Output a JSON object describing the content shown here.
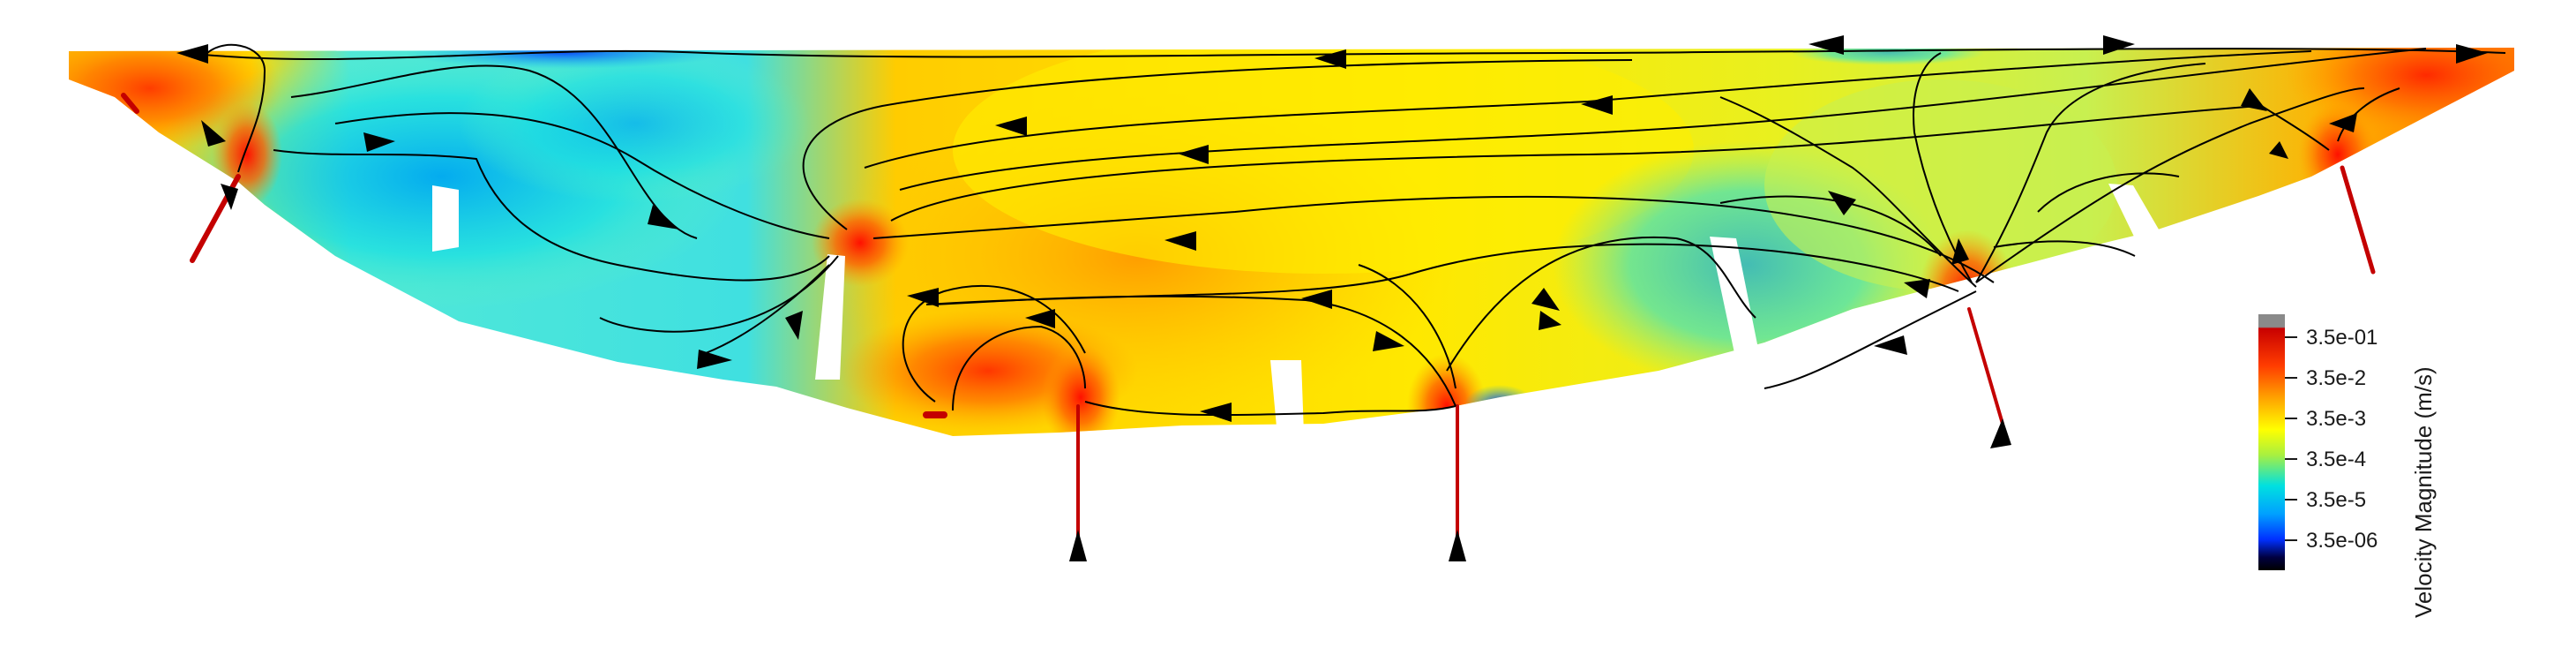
{
  "colorbar": {
    "title": "Velocity Magnitude (m/s)",
    "ticks": [
      "3.5e-01",
      "3.5e-2",
      "3.5e-3",
      "3.5e-4",
      "3.5e-5",
      "3.5e-06"
    ],
    "colors": [
      "#8a8a8a",
      "#c80000",
      "#ff3c00",
      "#ffa500",
      "#ffff00",
      "#a8f040",
      "#00e0e0",
      "#00a0ff",
      "#0030ff",
      "#000030",
      "#000000"
    ],
    "scale": "log"
  },
  "field_colors": {
    "high": "#ff3000",
    "medium": "#ffa000",
    "low_medium": "#ffee00",
    "low": "#c8f050",
    "very_low": "#30e8e8",
    "minimum": "#0050ff"
  }
}
